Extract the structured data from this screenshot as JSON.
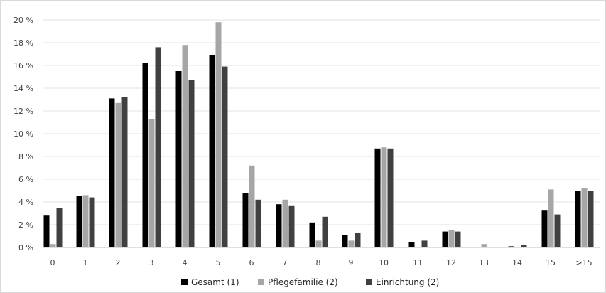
{
  "chart_data": {
    "type": "bar",
    "categories": [
      "0",
      "1",
      "2",
      "3",
      "4",
      "5",
      "6",
      "7",
      "8",
      "9",
      "10",
      "11",
      "12",
      "13",
      "14",
      "15",
      ">15"
    ],
    "series": [
      {
        "name": "Gesamt (1)",
        "color": "#000000",
        "values": [
          2.8,
          4.5,
          13.1,
          16.2,
          15.5,
          16.9,
          4.8,
          3.8,
          2.2,
          1.1,
          8.7,
          0.5,
          1.4,
          0.0,
          0.1,
          3.3,
          5.0
        ]
      },
      {
        "name": "Pflegefamilie (2)",
        "color": "#a6a6a6",
        "values": [
          0.3,
          4.6,
          12.7,
          11.3,
          17.8,
          19.8,
          7.2,
          4.2,
          0.6,
          0.6,
          8.8,
          0.0,
          1.5,
          0.3,
          0.0,
          5.1,
          5.2
        ]
      },
      {
        "name": "Einrichtung (2)",
        "color": "#404040",
        "values": [
          3.5,
          4.4,
          13.2,
          17.6,
          14.7,
          15.9,
          4.2,
          3.7,
          2.7,
          1.3,
          8.7,
          0.6,
          1.4,
          0.0,
          0.2,
          2.9,
          5.0
        ]
      }
    ],
    "y_ticks": [
      "0 %",
      "2 %",
      "4 %",
      "6 %",
      "8 %",
      "10 %",
      "12 %",
      "14 %",
      "16 %",
      "18 %",
      "20 %"
    ],
    "ylim": [
      0,
      20
    ],
    "grid": true,
    "legend_position": "bottom"
  }
}
